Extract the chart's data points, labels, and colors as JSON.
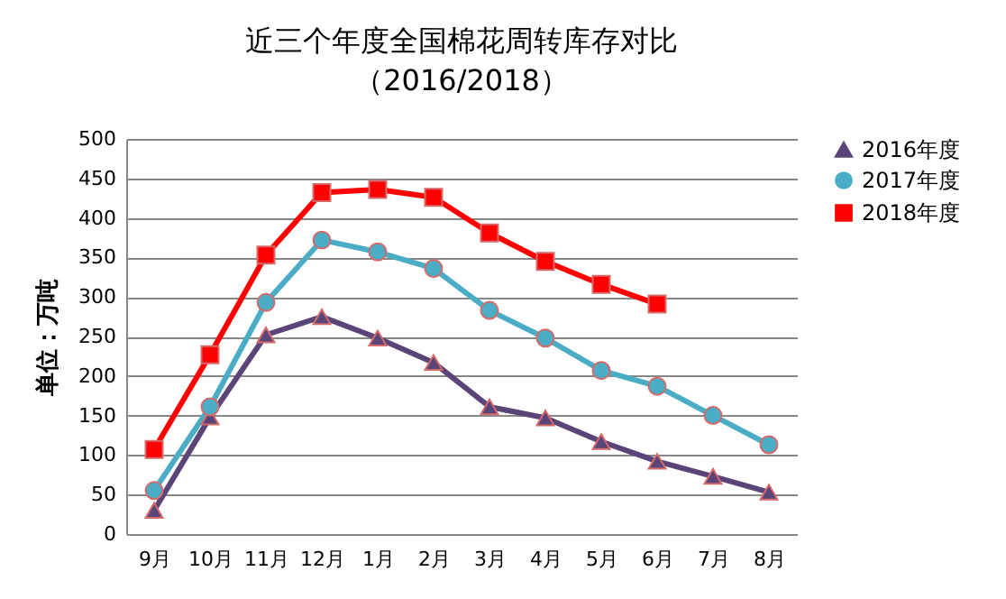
{
  "chart_data": {
    "type": "line",
    "title": "近三个年度全国棉花周转库存对比",
    "subtitle": "（2016/2018）",
    "ylabel": "单位：万吨",
    "categories": [
      "9月",
      "10月",
      "11月",
      "12月",
      "1月",
      "2月",
      "3月",
      "4月",
      "5月",
      "6月",
      "7月",
      "8月"
    ],
    "series": [
      {
        "name": "2016年度",
        "color": "#5b4478",
        "marker": "triangle",
        "values": [
          30,
          148,
          252,
          275,
          248,
          217,
          161,
          147,
          117,
          92,
          73,
          53
        ]
      },
      {
        "name": "2017年度",
        "color": "#4bacc6",
        "marker": "circle",
        "values": [
          55,
          161,
          293,
          372,
          357,
          336,
          283,
          248,
          207,
          187,
          150,
          113
        ]
      },
      {
        "name": "2018年度",
        "color": "#ff0000",
        "marker": "square",
        "values": [
          107,
          227,
          353,
          432,
          436,
          426,
          381,
          345,
          316,
          291,
          null,
          null
        ]
      }
    ],
    "ylim": [
      0,
      500
    ],
    "yticks": [
      0,
      50,
      100,
      150,
      200,
      250,
      300,
      350,
      400,
      450,
      500
    ],
    "grid": "y",
    "legend": "right",
    "line_style": "solid"
  }
}
